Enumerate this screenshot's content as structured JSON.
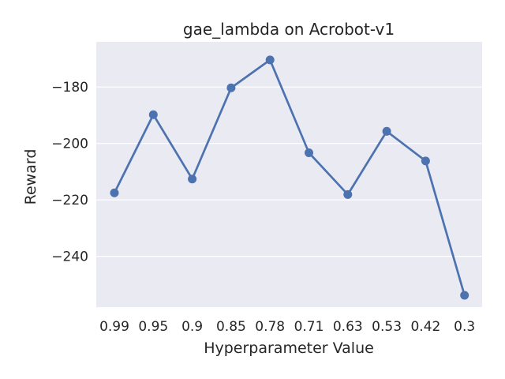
{
  "chart_data": {
    "type": "line",
    "title": "gae_lambda on Acrobot-v1",
    "xlabel": "Hyperparameter Value",
    "ylabel": "Reward",
    "categories": [
      "0.99",
      "0.95",
      "0.9",
      "0.85",
      "0.78",
      "0.71",
      "0.63",
      "0.53",
      "0.42",
      "0.3"
    ],
    "series": [
      {
        "values": [
          -217.5,
          -189.8,
          -212.6,
          -180.3,
          -170.4,
          -203.3,
          -218.1,
          -195.7,
          -206.2,
          -253.8
        ]
      }
    ],
    "yticks": [
      -180,
      -200,
      -220,
      -240
    ],
    "ytick_labels": [
      "−180",
      "−200",
      "−220",
      "−240"
    ],
    "ylim": [
      -258,
      -164
    ],
    "grid": true,
    "colors": {
      "line": "#4c72b0",
      "plot_background": "#eaeaf2",
      "grid": "#ffffff",
      "text": "#262626"
    }
  }
}
